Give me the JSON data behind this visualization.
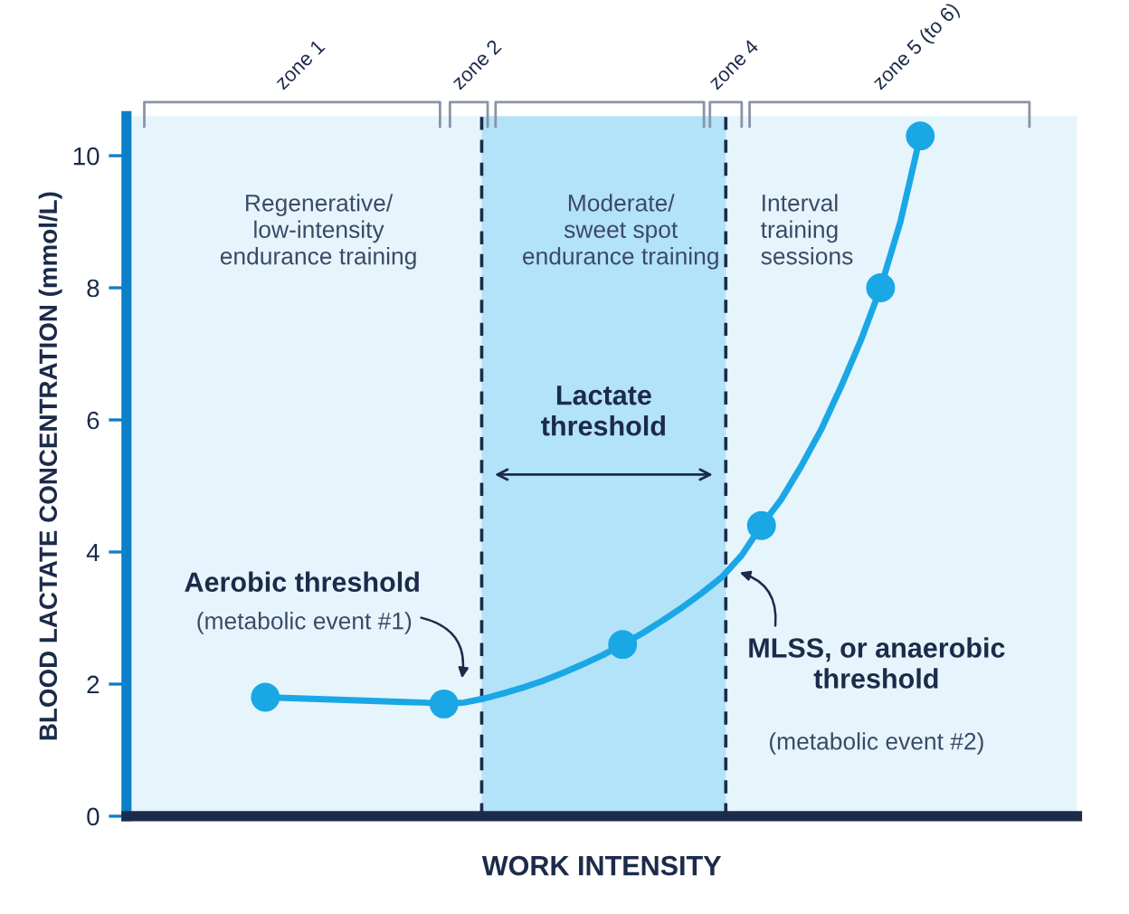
{
  "chart_data": {
    "type": "line",
    "xlabel": "WORK INTENSITY",
    "ylabel": "BLOOD LACTATE CONCENTRATION (mmol/L)",
    "categories": [
      null,
      null,
      null,
      null,
      null,
      null,
      null,
      null,
      null,
      null,
      null,
      null,
      null,
      null,
      null,
      null,
      null,
      null,
      null,
      null,
      null,
      null,
      null,
      null,
      null,
      null,
      null,
      null,
      null,
      null,
      null,
      null,
      null,
      null
    ],
    "ylim": [
      0,
      10.6
    ],
    "yticks": [
      0,
      2,
      4,
      6,
      8,
      10
    ],
    "series": [
      {
        "color": "#1aa7e6",
        "values": [
          1.8,
          1.79,
          1.78,
          1.77,
          1.76,
          1.75,
          1.74,
          1.73,
          1.72,
          1.7,
          1.72,
          1.78,
          1.86,
          1.95,
          2.05,
          2.17,
          2.3,
          2.44,
          2.6,
          2.77,
          2.96,
          3.16,
          3.38,
          3.62,
          3.95,
          4.4,
          4.8,
          5.3,
          5.85,
          6.5,
          7.2,
          8.0,
          9.0,
          10.3
        ]
      },
      {
        "type": "scatter",
        "color": "#1aa7e6",
        "marker": "circle",
        "values": [
          1.8,
          null,
          null,
          null,
          null,
          null,
          null,
          null,
          null,
          1.7,
          null,
          null,
          null,
          null,
          null,
          null,
          null,
          null,
          2.6,
          null,
          null,
          null,
          null,
          null,
          null,
          4.4,
          null,
          null,
          null,
          null,
          null,
          8.0,
          null,
          10.3
        ]
      }
    ],
    "annotations": [
      "Regenerative/\nlow-intensity\nendurance training",
      "Moderate/\nsweet spot\nendurance training",
      "Interval\ntraining\nsessions",
      "Aerobic threshold",
      "(metabolic event #1)",
      "MLSS, or anaerobic\nthreshold",
      "(metabolic event #2)",
      "Lactate\nthreshold",
      "zone 1",
      "zone 2",
      "zone 4",
      "zone 5 (to 6)"
    ]
  }
}
